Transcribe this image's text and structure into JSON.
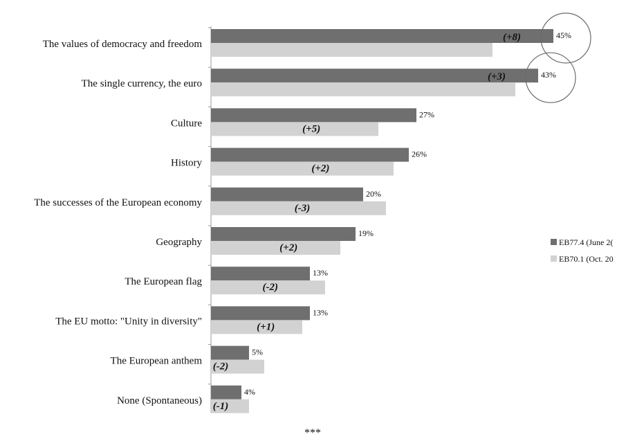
{
  "chart_data": {
    "type": "bar",
    "orientation": "horizontal",
    "categories": [
      "The values of democracy and freedom",
      "The single currency, the euro",
      "Culture",
      "History",
      "The successes of the European economy",
      "Geography",
      "The European flag",
      "The EU motto: \"Unity in diversity\"",
      "The European anthem",
      "None (Spontaneous)"
    ],
    "series": [
      {
        "name": "EB77.4 (June 2(",
        "values": [
          45,
          43,
          27,
          26,
          20,
          19,
          13,
          13,
          5,
          4
        ],
        "color": "#6f6f6f"
      },
      {
        "name": "EB70.1 (Oct. 20",
        "values": [
          37,
          40,
          22,
          24,
          23,
          17,
          15,
          12,
          7,
          5
        ],
        "color": "#d2d2d2"
      }
    ],
    "value_labels": [
      "45%",
      "43%",
      "27%",
      "26%",
      "20%",
      "19%",
      "13%",
      "13%",
      "5%",
      "4%"
    ],
    "change_labels": [
      "(+8)",
      "(+3)",
      "(+5)",
      "(+2)",
      "(-3)",
      "(+2)",
      "(-2)",
      "(+1)",
      "(-2)",
      "(-1)"
    ],
    "xlim": [
      0,
      55
    ],
    "grid": false,
    "legend_position": "right",
    "highlight_circles": [
      0,
      1
    ]
  },
  "footer": "***"
}
